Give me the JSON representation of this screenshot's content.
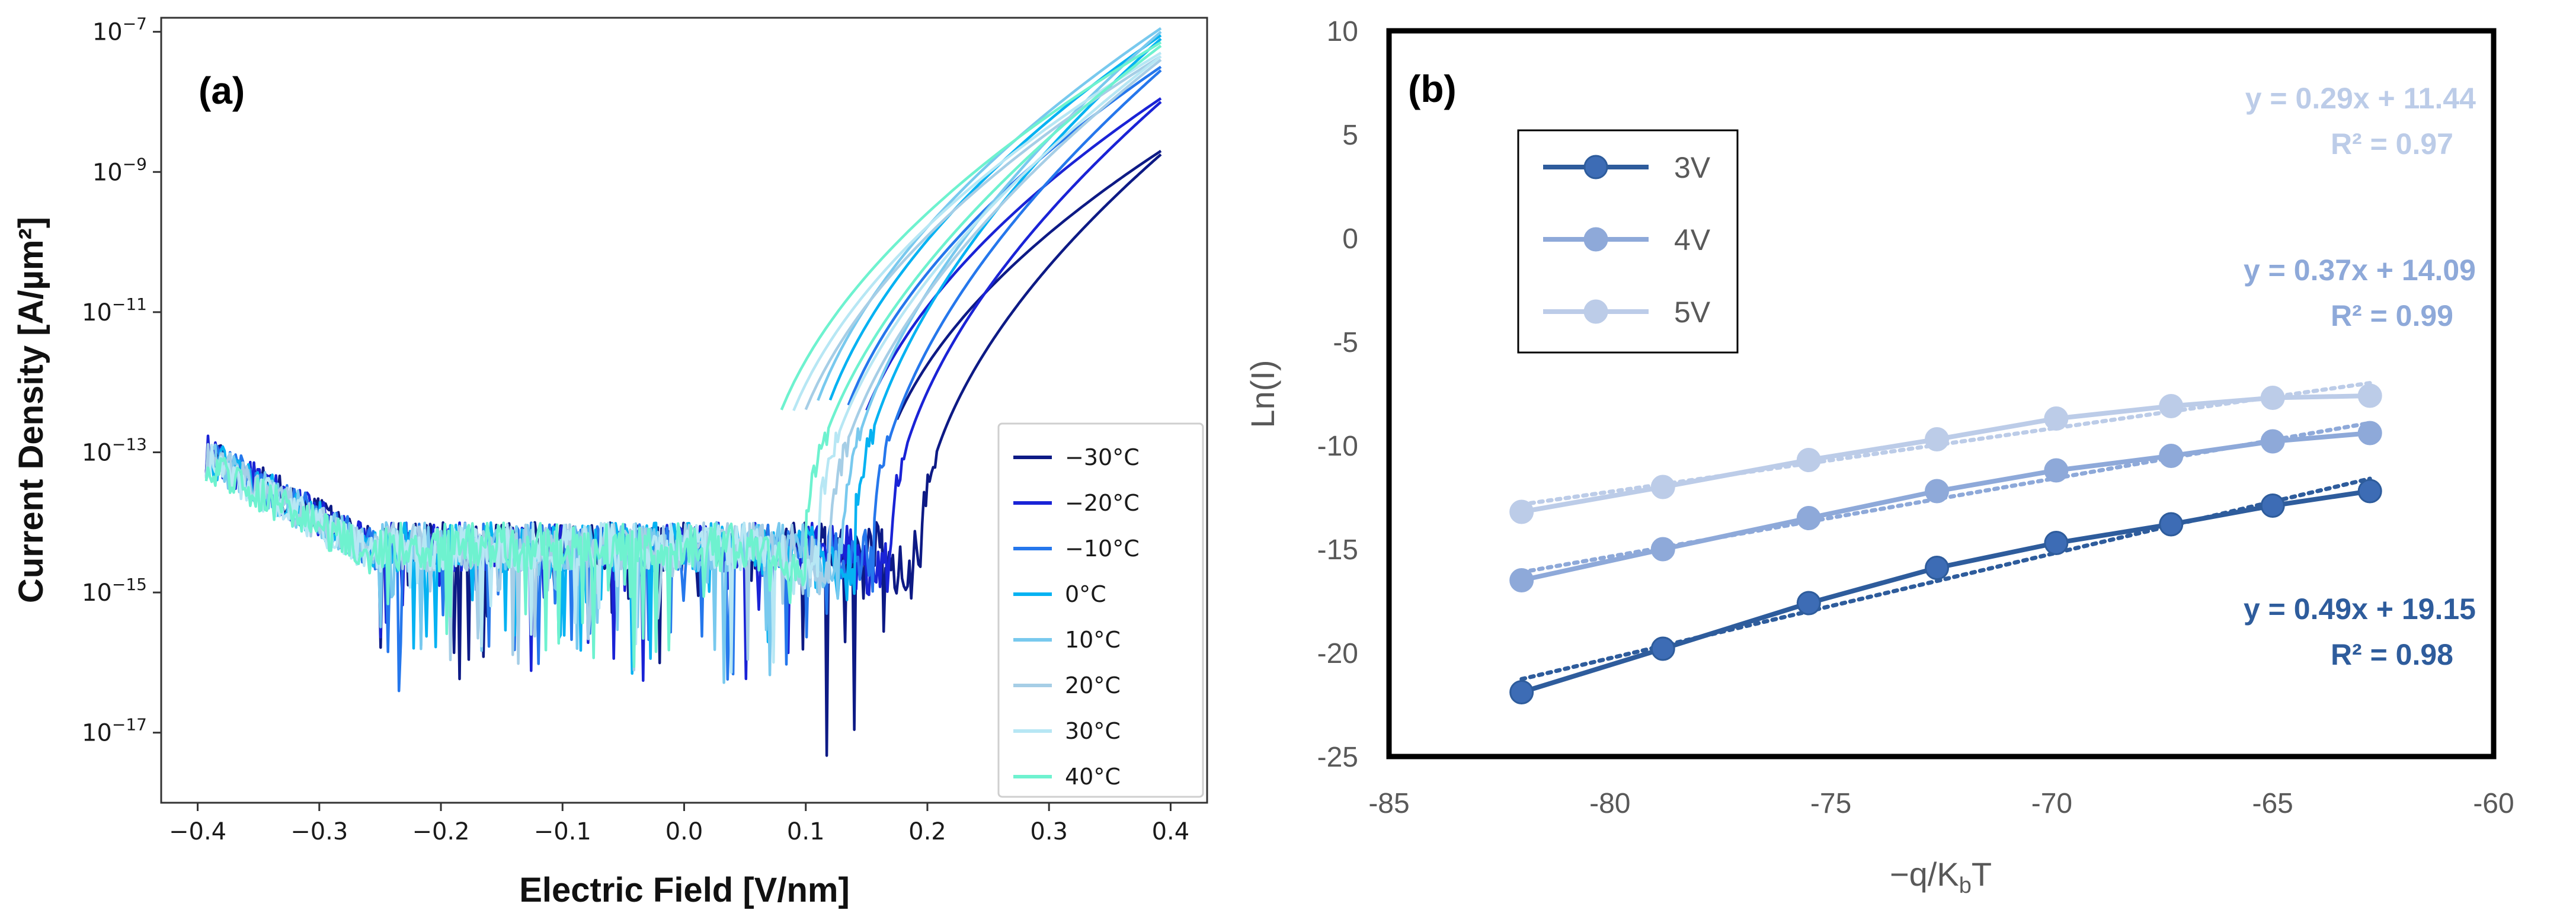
{
  "chart_data": [
    {
      "panel_label": "(a)",
      "type": "line",
      "xlabel": "Electric Field [V/nm]",
      "ylabel": "Current Density [A/µm²]",
      "xlim": [
        -0.43,
        0.43
      ],
      "ylim_exp": [
        -18.0,
        -6.8
      ],
      "yscale": "log",
      "xticks": [
        "−0.4",
        "−0.3",
        "−0.2",
        "−0.1",
        "0.0",
        "0.1",
        "0.2",
        "0.3",
        "0.4"
      ],
      "yticks": [
        {
          "base": "10",
          "exp": "−7"
        },
        {
          "base": "10",
          "exp": "−9"
        },
        {
          "base": "10",
          "exp": "−11"
        },
        {
          "base": "10",
          "exp": "−13"
        },
        {
          "base": "10",
          "exp": "−15"
        },
        {
          "base": "10",
          "exp": "−17"
        }
      ],
      "ytick_values": [
        -7,
        -9,
        -11,
        -13,
        -15,
        -17
      ],
      "xtick_values": [
        -0.4,
        -0.3,
        -0.2,
        -0.1,
        0.0,
        0.1,
        0.2,
        0.3,
        0.4
      ],
      "legend_position": "lower right",
      "series": [
        {
          "name": "−30°C",
          "color": "#0d1a85",
          "onset_V_per_nm": 0.195,
          "end_log10_J": -8.75
        },
        {
          "name": "−20°C",
          "color": "#1a23d6",
          "onset_V_per_nm": 0.17,
          "end_log10_J": -8.0
        },
        {
          "name": "−10°C",
          "color": "#2577ec",
          "onset_V_per_nm": 0.155,
          "end_log10_J": -7.55
        },
        {
          "name": "0°C",
          "color": "#05b2f2",
          "onset_V_per_nm": 0.14,
          "end_log10_J": -7.1
        },
        {
          "name": "10°C",
          "color": "#78c9ee",
          "onset_V_per_nm": 0.13,
          "end_log10_J": -7.0
        },
        {
          "name": "20°C",
          "color": "#a6cee6",
          "onset_V_per_nm": 0.12,
          "end_log10_J": -7.4
        },
        {
          "name": "30°C",
          "color": "#b7e7f4",
          "onset_V_per_nm": 0.11,
          "end_log10_J": -7.35
        },
        {
          "name": "40°C",
          "color": "#6ef2cf",
          "onset_V_per_nm": 0.1,
          "end_log10_J": -7.2
        }
      ]
    },
    {
      "panel_label": "(b)",
      "type": "line",
      "xlabel": "−q/K",
      "xlabel_sub": "b",
      "xlabel_tail": "T",
      "ylabel": "Ln(I)",
      "xlim": [
        -85,
        -60
      ],
      "ylim": [
        -25,
        10
      ],
      "xticks": [
        -85,
        -80,
        -75,
        -70,
        -65,
        -60
      ],
      "yticks": [
        10,
        5,
        0,
        -5,
        -10,
        -15,
        -20,
        -25
      ],
      "x": [
        -82.0,
        -78.8,
        -75.5,
        -72.6,
        -69.9,
        -67.3,
        -65.0,
        -62.8
      ],
      "legend_position": "upper left",
      "series": [
        {
          "name": "3V",
          "color": "#2e5c9c",
          "marker_color": "#3d6cb5",
          "values": [
            -21.9,
            -19.8,
            -17.6,
            -15.9,
            -14.7,
            -13.8,
            -12.9,
            -12.2
          ],
          "fit_label": "y = 0.49x + 19.15",
          "r2_label": "R² = 0.98"
        },
        {
          "name": "4V",
          "color": "#8ea9d9",
          "marker_color": "#8ea9d9",
          "values": [
            -16.5,
            -15.0,
            -13.5,
            -12.2,
            -11.2,
            -10.5,
            -9.8,
            -9.4
          ],
          "fit_label": "y = 0.37x + 14.09",
          "r2_label": "R² = 0.99"
        },
        {
          "name": "5V",
          "color": "#bccce8",
          "marker_color": "#bccce8",
          "values": [
            -13.2,
            -12.0,
            -10.7,
            -9.7,
            -8.7,
            -8.1,
            -7.7,
            -7.6
          ],
          "fit_label": "y = 0.29x + 11.44",
          "r2_label": "R² = 0.97"
        }
      ]
    }
  ]
}
